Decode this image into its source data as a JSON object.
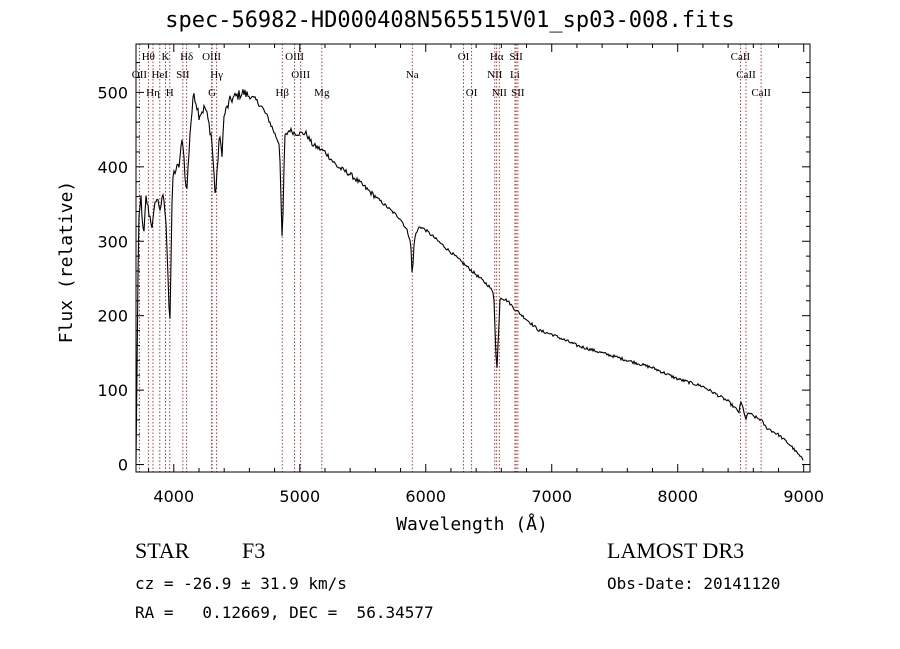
{
  "chart_data": {
    "type": "line",
    "title": "spec-56982-HD000408N565515V01_sp03-008.fits",
    "xlabel": "Wavelength (Å)",
    "ylabel": "Flux (relative)",
    "xlim": [
      3700,
      9050
    ],
    "ylim": [
      -10,
      565
    ],
    "xticks": [
      4000,
      5000,
      6000,
      7000,
      8000,
      9000
    ],
    "yticks": [
      0,
      100,
      200,
      300,
      400,
      500
    ],
    "x": [
      3700,
      3720,
      3740,
      3760,
      3780,
      3800,
      3830,
      3860,
      3890,
      3920,
      3935,
      3950,
      3968,
      3990,
      4010,
      4040,
      4070,
      4101,
      4130,
      4160,
      4200,
      4250,
      4300,
      4330,
      4340,
      4360,
      4383,
      4400,
      4450,
      4500,
      4550,
      4600,
      4650,
      4700,
      4750,
      4800,
      4840,
      4861,
      4880,
      4920,
      4960,
      5000,
      5050,
      5100,
      5150,
      5200,
      5250,
      5300,
      5400,
      5500,
      5600,
      5700,
      5800,
      5850,
      5880,
      5893,
      5910,
      5950,
      6000,
      6100,
      6200,
      6300,
      6400,
      6500,
      6540,
      6563,
      6590,
      6650,
      6700,
      6800,
      6900,
      7000,
      7200,
      7400,
      7600,
      7800,
      8000,
      8200,
      8400,
      8490,
      8498,
      8520,
      8542,
      8560,
      8600,
      8662,
      8700,
      8800,
      8900,
      8950,
      9000
    ],
    "y": [
      0,
      320,
      360,
      300,
      360,
      340,
      320,
      360,
      345,
      360,
      330,
      280,
      180,
      385,
      395,
      400,
      440,
      360,
      450,
      500,
      470,
      480,
      440,
      360,
      380,
      440,
      420,
      470,
      490,
      495,
      500,
      495,
      490,
      480,
      465,
      445,
      430,
      290,
      440,
      450,
      445,
      445,
      445,
      430,
      425,
      420,
      410,
      400,
      390,
      375,
      360,
      345,
      330,
      315,
      300,
      250,
      305,
      320,
      315,
      300,
      285,
      270,
      255,
      240,
      230,
      120,
      225,
      220,
      210,
      195,
      180,
      175,
      160,
      150,
      140,
      130,
      115,
      105,
      85,
      70,
      85,
      75,
      60,
      70,
      65,
      60,
      50,
      40,
      25,
      15,
      5
    ],
    "lines": [
      {
        "label": "Hθ",
        "wave": 3798,
        "tier": 0
      },
      {
        "label": "K",
        "wave": 3934,
        "tier": 0
      },
      {
        "label": "Hδ",
        "wave": 4102,
        "tier": 0
      },
      {
        "label": "OIII",
        "wave": 4300,
        "tier": 0
      },
      {
        "label": "OIII",
        "wave": 4959,
        "tier": 0
      },
      {
        "label": "OI",
        "wave": 6300,
        "tier": 0
      },
      {
        "label": "Hα",
        "wave": 6563,
        "tier": 0
      },
      {
        "label": "SII",
        "wave": 6717,
        "tier": 0
      },
      {
        "label": "CaII",
        "wave": 8498,
        "tier": 0
      },
      {
        "label": "OII",
        "wave": 3727,
        "tier": 1
      },
      {
        "label": "HeI",
        "wave": 3889,
        "tier": 1
      },
      {
        "label": "SII",
        "wave": 4072,
        "tier": 1
      },
      {
        "label": "Hγ",
        "wave": 4340,
        "tier": 1
      },
      {
        "label": "OIII",
        "wave": 5007,
        "tier": 1
      },
      {
        "label": "Na",
        "wave": 5893,
        "tier": 1
      },
      {
        "label": "NII",
        "wave": 6548,
        "tier": 1
      },
      {
        "label": "Li",
        "wave": 6708,
        "tier": 1
      },
      {
        "label": "CaII",
        "wave": 8542,
        "tier": 1
      },
      {
        "label": "Hη",
        "wave": 3835,
        "tier": 2
      },
      {
        "label": "H",
        "wave": 3968,
        "tier": 2
      },
      {
        "label": "G",
        "wave": 4304,
        "tier": 2
      },
      {
        "label": "Hβ",
        "wave": 4861,
        "tier": 2
      },
      {
        "label": "Mg",
        "wave": 5175,
        "tier": 2
      },
      {
        "label": "OI",
        "wave": 6364,
        "tier": 2
      },
      {
        "label": "NII",
        "wave": 6584,
        "tier": 2
      },
      {
        "label": "SII",
        "wave": 6731,
        "tier": 2
      },
      {
        "label": "CaII",
        "wave": 8662,
        "tier": 2
      }
    ]
  },
  "info": {
    "object": "STAR",
    "subclass": "F3",
    "survey": "LAMOST DR3",
    "cz": "cz = -26.9 ± 31.9 km/s",
    "obs_date": "Obs-Date: 20141120",
    "radec": "RA =   0.12669, DEC =  56.34577"
  }
}
